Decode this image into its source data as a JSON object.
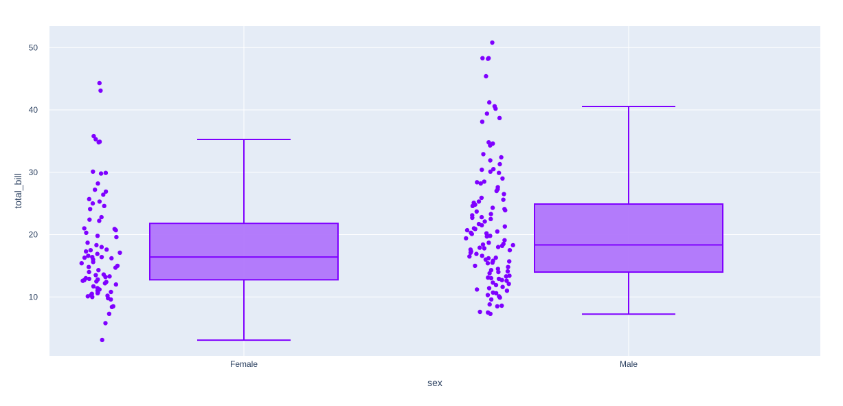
{
  "chart_data": {
    "type": "box",
    "title": "",
    "xlabel": "sex",
    "ylabel": "total_bill",
    "categories": [
      "Female",
      "Male"
    ],
    "y_ticks": [
      10,
      20,
      30,
      40,
      50
    ],
    "ylim": [
      0.9,
      53.7
    ],
    "grid": true,
    "points": "all",
    "colors": {
      "plot_bg": "#e5ecf6",
      "grid": "#ffffff",
      "box_line": "#7f00ff",
      "box_fill": "#b075fb",
      "marker": "#7f00ff",
      "text": "#2a3f5f"
    },
    "boxes": [
      {
        "name": "Female",
        "lowerfence": 3.07,
        "q1": 12.75,
        "median": 16.4,
        "q3": 21.8,
        "upperfence": 35.26
      },
      {
        "name": "Male",
        "lowerfence": 7.25,
        "q1": 13.99,
        "median": 18.35,
        "q3": 24.9,
        "upperfence": 40.55
      }
    ],
    "jitter_points": [
      {
        "name": "Female",
        "values": [
          44.3,
          43.1,
          35.8,
          35.3,
          34.8,
          34.9,
          30.1,
          29.9,
          29.8,
          28.2,
          27.2,
          26.9,
          26.4,
          25.7,
          25.3,
          25.0,
          24.6,
          24.1,
          22.8,
          22.2,
          22.4,
          21.0,
          20.9,
          20.7,
          20.3,
          19.8,
          19.6,
          18.7,
          18.3,
          18.0,
          17.6,
          17.5,
          17.3,
          17.1,
          16.9,
          16.6,
          16.4,
          16.4,
          16.3,
          16.2,
          16.0,
          15.6,
          15.4,
          15.0,
          14.8,
          14.7,
          14.3,
          14.0,
          13.6,
          13.5,
          13.3,
          13.2,
          13.0,
          12.9,
          12.8,
          12.7,
          12.6,
          12.5,
          12.4,
          12.2,
          12.0,
          11.7,
          11.4,
          11.2,
          11.0,
          10.8,
          10.7,
          10.6,
          10.5,
          10.3,
          10.2,
          10.1,
          10.0,
          9.8,
          9.6,
          8.5,
          8.4,
          7.3,
          5.8,
          3.1
        ]
      },
      {
        "name": "Male",
        "values": [
          50.8,
          48.3,
          48.2,
          48.3,
          45.4,
          41.2,
          40.6,
          40.2,
          39.4,
          38.7,
          38.1,
          34.8,
          34.6,
          34.3,
          32.9,
          32.4,
          31.9,
          31.3,
          30.5,
          30.1,
          30.4,
          29.9,
          29.0,
          28.5,
          28.4,
          28.2,
          27.6,
          27.3,
          27.0,
          26.5,
          25.9,
          25.6,
          25.3,
          25.1,
          24.8,
          24.6,
          24.3,
          24.1,
          23.9,
          23.7,
          23.3,
          23.1,
          22.8,
          22.5,
          22.7,
          22.1,
          21.7,
          21.5,
          21.3,
          21.0,
          20.9,
          20.7,
          20.5,
          20.3,
          20.2,
          20.1,
          19.8,
          19.7,
          19.4,
          19.1,
          18.7,
          18.5,
          18.4,
          18.3,
          18.2,
          18.0,
          17.9,
          17.8,
          17.6,
          17.5,
          17.3,
          17.1,
          16.9,
          16.6,
          16.5,
          16.3,
          16.2,
          16.0,
          15.8,
          15.7,
          15.5,
          15.4,
          15.0,
          14.8,
          14.5,
          14.3,
          14.1,
          14.0,
          13.8,
          13.4,
          13.3,
          13.1,
          13.0,
          12.9,
          12.7,
          12.6,
          12.3,
          12.1,
          11.9,
          11.6,
          11.4,
          11.2,
          11.0,
          10.7,
          10.6,
          10.3,
          10.1,
          9.9,
          9.6,
          8.8,
          8.6,
          8.5,
          7.6,
          7.5,
          7.3
        ]
      }
    ]
  }
}
